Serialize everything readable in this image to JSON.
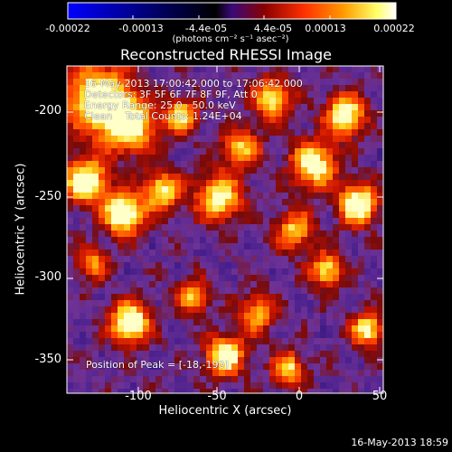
{
  "colorbar": {
    "ticks": [
      "-0.00022",
      "-0.00013",
      "-4.4e-05",
      "4.4e-05",
      "0.00013",
      "0.00022"
    ],
    "units_label": "(photons cm⁻² s⁻¹ asec⁻²)",
    "gradient_colors": [
      "#0000ff",
      "#000000",
      "#3a0a7a",
      "#8a0000",
      "#ff3000",
      "#ff9a00",
      "#ffff66",
      "#ffffff"
    ]
  },
  "plot": {
    "title": "Reconstructed RHESSI Image",
    "info_lines": [
      "16-May-2013 17:00:42.000 to 17:06:42.000",
      "Detectors: 3F 5F 6F 7F 8F 9F, Att 0",
      "Energy Range: 25.0 - 50.0 keV",
      "Clean    Total Counts: 1.24E+04"
    ],
    "peak_label": "Position of Peak = [-18,-190]",
    "x_axis_label": "Heliocentric X (arcsec)",
    "y_axis_label": "Heliocentric Y (arcsec)",
    "x_ticks": [
      "-100",
      "-50",
      "0",
      "50"
    ],
    "y_ticks": [
      "-200",
      "-250",
      "-300",
      "-350"
    ]
  },
  "footer": {
    "timestamp": "16-May-2013 18:59"
  }
}
